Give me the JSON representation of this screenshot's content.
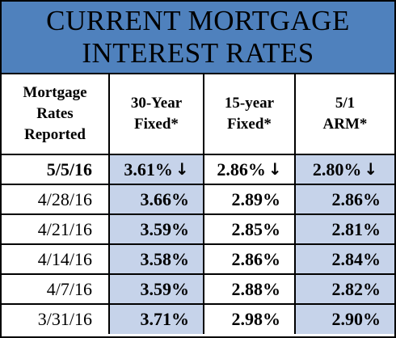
{
  "title": {
    "line1": "CURRENT MORTGAGE",
    "line2": "INTEREST RATES"
  },
  "colors": {
    "banner": "#4f81bd",
    "shade": "#c6d3ea",
    "border": "#000000"
  },
  "headers": [
    {
      "line1": "Mortgage",
      "line2": "Rates",
      "line3": "Reported"
    },
    {
      "line1": "30-Year",
      "line2": "Fixed*"
    },
    {
      "line1": "15-year",
      "line2": "Fixed*"
    },
    {
      "line1": "5/1",
      "line2": "ARM*"
    }
  ],
  "rows": [
    {
      "date": "5/5/16",
      "rate30": "3.61%",
      "rate15": "2.86%",
      "arm": "2.80%",
      "arrow": "↓"
    },
    {
      "date": "4/28/16",
      "rate30": "3.66%",
      "rate15": "2.89%",
      "arm": "2.86%"
    },
    {
      "date": "4/21/16",
      "rate30": "3.59%",
      "rate15": "2.85%",
      "arm": "2.81%"
    },
    {
      "date": "4/14/16",
      "rate30": "3.58%",
      "rate15": "2.86%",
      "arm": "2.84%"
    },
    {
      "date": "4/7/16",
      "rate30": "3.59%",
      "rate15": "2.88%",
      "arm": "2.82%"
    },
    {
      "date": "3/31/16",
      "rate30": "3.71%",
      "rate15": "2.98%",
      "arm": "2.90%"
    }
  ]
}
